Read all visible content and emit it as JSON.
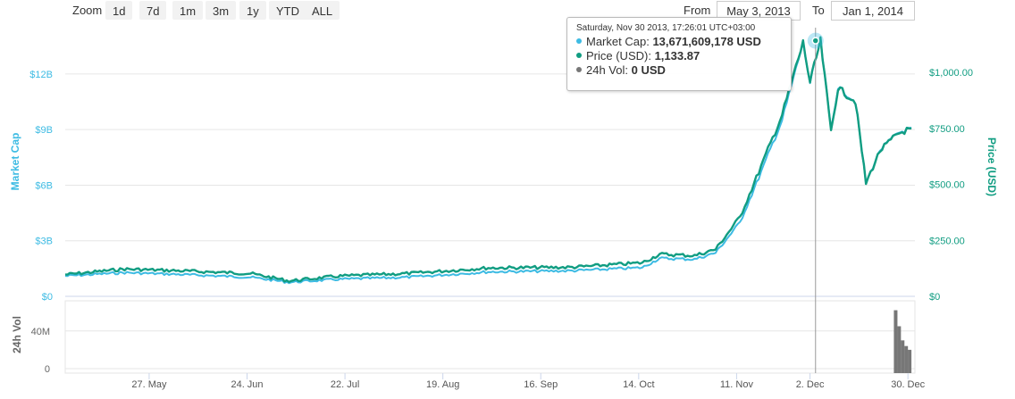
{
  "toolbar": {
    "zoom_label": "Zoom",
    "zoom_buttons": [
      "1d",
      "7d",
      "1m",
      "3m",
      "1y",
      "YTD",
      "ALL"
    ],
    "from_label": "From",
    "from_value": "May 3, 2013",
    "to_label": "To",
    "to_value": "Jan 1, 2014"
  },
  "tooltip": {
    "date": "Saturday, Nov 30 2013, 17:26:01 UTC+03:00",
    "rows": [
      {
        "name": "Market Cap",
        "value": "13,671,609,178 USD",
        "color": "#3dbbe3"
      },
      {
        "name": "Price (USD)",
        "value": "1,133.87",
        "color": "#119d82"
      },
      {
        "name": "24h Vol",
        "value": "0 USD",
        "color": "#777777"
      }
    ]
  },
  "chart_data": {
    "type": "line",
    "x_range": [
      "2013-05-03",
      "2014-01-01"
    ],
    "x_ticks": [
      "27. May",
      "24. Jun",
      "22. Jul",
      "19. Aug",
      "16. Sep",
      "14. Oct",
      "11. Nov",
      "2. Dec",
      "30. Dec"
    ],
    "y_left": {
      "label": "Market Cap",
      "ticks": [
        "$0",
        "$3B",
        "$6B",
        "$9B",
        "$12B"
      ],
      "range": [
        0,
        14500000000
      ],
      "color": "#3dbbe3"
    },
    "y_right": {
      "label": "Price (USD)",
      "ticks": [
        "$0",
        "$250.00",
        "$500.00",
        "$750.00",
        "$1,000.00"
      ],
      "range": [
        0,
        1200
      ],
      "color": "#119d82"
    },
    "y_volume": {
      "label": "24h Vol",
      "ticks": [
        "0",
        "40M"
      ],
      "range": [
        0,
        72000000
      ],
      "color": "#777777"
    },
    "series": [
      {
        "name": "Market Cap",
        "axis": "left",
        "color": "#3dbbe3",
        "points": [
          [
            "2013-05-03",
            1100000000
          ],
          [
            "2013-05-20",
            1280000000
          ],
          [
            "2013-06-05",
            1180000000
          ],
          [
            "2013-06-25",
            1030000000
          ],
          [
            "2013-07-06",
            760000000
          ],
          [
            "2013-07-20",
            920000000
          ],
          [
            "2013-08-10",
            1040000000
          ],
          [
            "2013-09-01",
            1320000000
          ],
          [
            "2013-09-25",
            1380000000
          ],
          [
            "2013-10-15",
            1550000000
          ],
          [
            "2013-10-20",
            2050000000
          ],
          [
            "2013-10-30",
            2000000000
          ],
          [
            "2013-11-05",
            2350000000
          ],
          [
            "2013-11-12",
            4000000000
          ],
          [
            "2013-11-18",
            6700000000
          ],
          [
            "2013-11-24",
            9500000000
          ],
          [
            "2013-11-30",
            13671609178
          ],
          [
            "2013-12-02",
            11500000000
          ],
          [
            "2013-12-05",
            13800000000
          ],
          [
            "2013-12-08",
            9000000000
          ],
          [
            "2013-12-10",
            11300000000
          ],
          [
            "2013-12-15",
            10500000000
          ],
          [
            "2013-12-18",
            6100000000
          ],
          [
            "2013-12-22",
            7900000000
          ],
          [
            "2013-12-27",
            8800000000
          ],
          [
            "2013-12-31",
            9100000000
          ]
        ]
      },
      {
        "name": "Price (USD)",
        "axis": "right",
        "color": "#119d82",
        "points": [
          [
            "2013-05-03",
            97
          ],
          [
            "2013-05-20",
            122
          ],
          [
            "2013-06-05",
            114
          ],
          [
            "2013-06-25",
            102
          ],
          [
            "2013-07-06",
            69
          ],
          [
            "2013-07-20",
            90
          ],
          [
            "2013-08-10",
            103
          ],
          [
            "2013-09-01",
            127
          ],
          [
            "2013-09-25",
            130
          ],
          [
            "2013-10-15",
            150
          ],
          [
            "2013-10-20",
            188
          ],
          [
            "2013-10-30",
            182
          ],
          [
            "2013-11-05",
            210
          ],
          [
            "2013-11-12",
            355
          ],
          [
            "2013-11-18",
            580
          ],
          [
            "2013-11-24",
            810
          ],
          [
            "2013-11-30",
            1133.87
          ],
          [
            "2013-12-02",
            955
          ],
          [
            "2013-12-05",
            1140
          ],
          [
            "2013-12-08",
            740
          ],
          [
            "2013-12-10",
            930
          ],
          [
            "2013-12-15",
            870
          ],
          [
            "2013-12-18",
            505
          ],
          [
            "2013-12-22",
            650
          ],
          [
            "2013-12-27",
            725
          ],
          [
            "2013-12-31",
            750
          ]
        ]
      },
      {
        "name": "24h Vol",
        "axis": "volume",
        "type": "bar",
        "color": "#777777",
        "points": [
          [
            "2013-12-27",
            62000000
          ],
          [
            "2013-12-28",
            45000000
          ],
          [
            "2013-12-29",
            30000000
          ],
          [
            "2013-12-30",
            24000000
          ],
          [
            "2013-12-31",
            20000000
          ]
        ]
      }
    ],
    "hover_date": "2013-11-30",
    "grid": true
  }
}
